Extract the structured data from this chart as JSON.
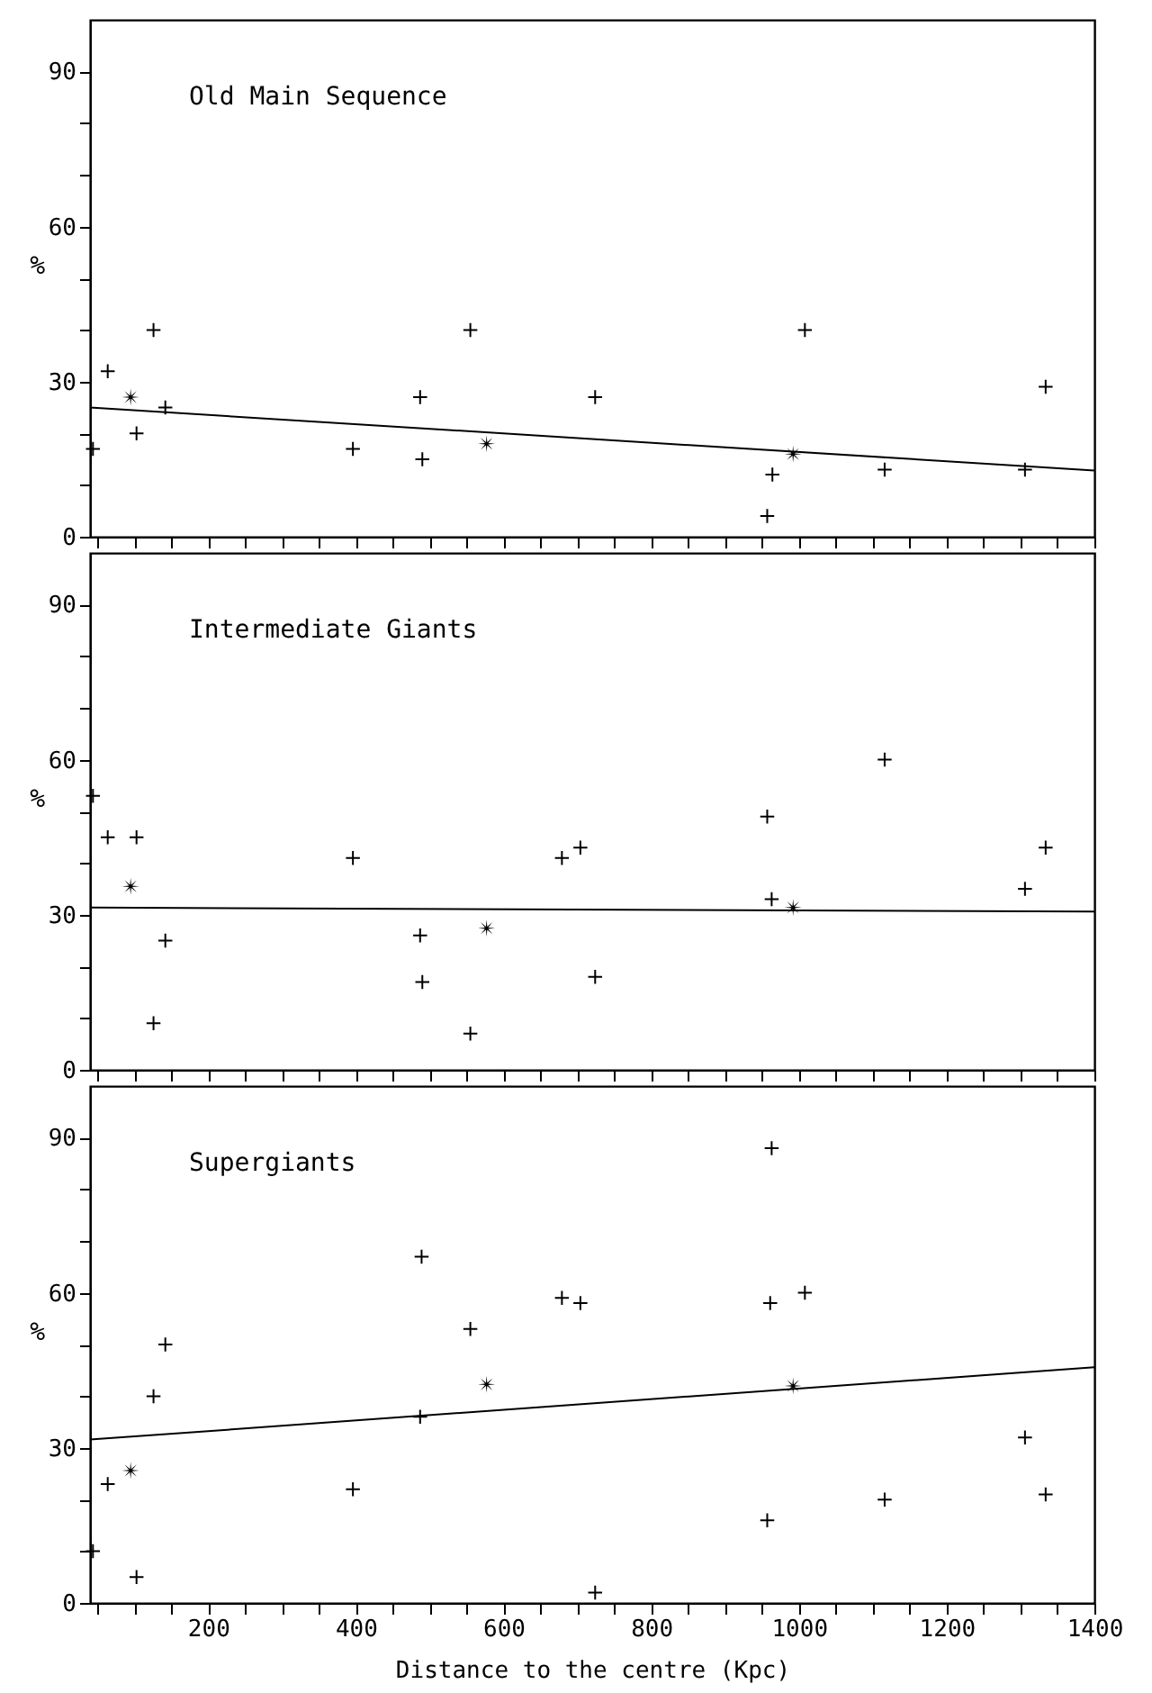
{
  "chart_data": [
    {
      "type": "scatter",
      "title": "Old Main Sequence",
      "ylabel": "%",
      "xlim": [
        40,
        1400
      ],
      "ylim": [
        0,
        100
      ],
      "tick_labels": "y",
      "grid": false,
      "xticks": [
        {
          "value": 50,
          "label": null
        },
        {
          "value": 100,
          "label": null
        },
        {
          "value": 150,
          "label": null
        },
        200,
        {
          "value": 250,
          "label": null
        },
        {
          "value": 300,
          "label": null
        },
        {
          "value": 350,
          "label": null
        },
        400,
        {
          "value": 450,
          "label": null
        },
        {
          "value": 500,
          "label": null
        },
        {
          "value": 550,
          "label": null
        },
        600,
        {
          "value": 650,
          "label": null
        },
        {
          "value": 700,
          "label": null
        },
        {
          "value": 750,
          "label": null
        },
        800,
        {
          "value": 850,
          "label": null
        },
        {
          "value": 900,
          "label": null
        },
        {
          "value": 950,
          "label": null
        },
        1000,
        {
          "value": 1050,
          "label": null
        },
        {
          "value": 1100,
          "label": null
        },
        {
          "value": 1150,
          "label": null
        },
        1200,
        {
          "value": 1250,
          "label": null
        },
        {
          "value": 1300,
          "label": null
        },
        {
          "value": 1350,
          "label": null
        },
        1400
      ],
      "yticks": [
        0,
        {
          "value": 10,
          "label": null
        },
        {
          "value": 20,
          "label": null
        },
        30,
        {
          "value": 40,
          "label": null
        },
        {
          "value": 50,
          "label": null
        },
        60,
        {
          "value": 70,
          "label": null
        },
        {
          "value": 80,
          "label": null
        },
        90
      ],
      "series": [
        {
          "type": "scatter",
          "marker": "cross",
          "color": "#000000",
          "x": [
            44,
            64,
            103,
            126,
            142,
            396,
            487,
            490,
            555,
            724,
            957,
            964,
            1008,
            1116,
            1306,
            1334
          ],
          "values": [
            17,
            32,
            20,
            40,
            25,
            17,
            27,
            15,
            40,
            27,
            4,
            12,
            40,
            13,
            13,
            29
          ]
        },
        {
          "type": "scatter",
          "marker": "star",
          "color": "#000000",
          "x": [
            95,
            577,
            992
          ],
          "values": [
            27,
            18,
            16
          ]
        },
        {
          "type": "line",
          "marker": "none",
          "line_style": "solid",
          "color": "#000000",
          "x": [
            40,
            1400
          ],
          "values": [
            25.0,
            12.8
          ]
        }
      ]
    },
    {
      "type": "scatter",
      "title": "Intermediate Giants",
      "ylabel": "%",
      "xlim": [
        40,
        1400
      ],
      "ylim": [
        0,
        100
      ],
      "tick_labels": "y",
      "grid": false,
      "xticks": [
        {
          "value": 50,
          "label": null
        },
        {
          "value": 100,
          "label": null
        },
        {
          "value": 150,
          "label": null
        },
        200,
        {
          "value": 250,
          "label": null
        },
        {
          "value": 300,
          "label": null
        },
        {
          "value": 350,
          "label": null
        },
        400,
        {
          "value": 450,
          "label": null
        },
        {
          "value": 500,
          "label": null
        },
        {
          "value": 550,
          "label": null
        },
        600,
        {
          "value": 650,
          "label": null
        },
        {
          "value": 700,
          "label": null
        },
        {
          "value": 750,
          "label": null
        },
        800,
        {
          "value": 850,
          "label": null
        },
        {
          "value": 900,
          "label": null
        },
        {
          "value": 950,
          "label": null
        },
        1000,
        {
          "value": 1050,
          "label": null
        },
        {
          "value": 1100,
          "label": null
        },
        {
          "value": 1150,
          "label": null
        },
        1200,
        {
          "value": 1250,
          "label": null
        },
        {
          "value": 1300,
          "label": null
        },
        {
          "value": 1350,
          "label": null
        },
        1400
      ],
      "yticks": [
        0,
        {
          "value": 10,
          "label": null
        },
        {
          "value": 20,
          "label": null
        },
        30,
        {
          "value": 40,
          "label": null
        },
        {
          "value": 50,
          "label": null
        },
        60,
        {
          "value": 70,
          "label": null
        },
        {
          "value": 80,
          "label": null
        },
        90
      ],
      "series": [
        {
          "type": "scatter",
          "marker": "cross",
          "color": "#000000",
          "x": [
            44,
            64,
            103,
            126,
            142,
            396,
            487,
            490,
            555,
            679,
            704,
            724,
            957,
            963,
            1116,
            1306,
            1334
          ],
          "values": [
            53,
            45,
            45,
            9,
            25,
            41,
            26,
            17,
            7,
            41,
            43,
            18,
            49,
            33,
            60,
            35,
            43
          ]
        },
        {
          "type": "scatter",
          "marker": "star",
          "color": "#000000",
          "x": [
            95,
            577,
            992
          ],
          "values": [
            35.5,
            27.4,
            31.4
          ]
        },
        {
          "type": "line",
          "marker": "none",
          "line_style": "solid",
          "color": "#000000",
          "x": [
            40,
            1400
          ],
          "values": [
            31.4,
            30.6
          ]
        }
      ]
    },
    {
      "type": "scatter",
      "title": "Supergiants",
      "ylabel": "%",
      "xlabel": "Distance to the centre (Kpc)",
      "xlim": [
        40,
        1400
      ],
      "ylim": [
        0,
        100
      ],
      "grid": false,
      "xticks": [
        {
          "value": 50,
          "label": null
        },
        {
          "value": 100,
          "label": null
        },
        {
          "value": 150,
          "label": null
        },
        200,
        {
          "value": 250,
          "label": null
        },
        {
          "value": 300,
          "label": null
        },
        {
          "value": 350,
          "label": null
        },
        400,
        {
          "value": 450,
          "label": null
        },
        {
          "value": 500,
          "label": null
        },
        {
          "value": 550,
          "label": null
        },
        600,
        {
          "value": 650,
          "label": null
        },
        {
          "value": 700,
          "label": null
        },
        {
          "value": 750,
          "label": null
        },
        800,
        {
          "value": 850,
          "label": null
        },
        {
          "value": 900,
          "label": null
        },
        {
          "value": 950,
          "label": null
        },
        1000,
        {
          "value": 1050,
          "label": null
        },
        {
          "value": 1100,
          "label": null
        },
        {
          "value": 1150,
          "label": null
        },
        1200,
        {
          "value": 1250,
          "label": null
        },
        {
          "value": 1300,
          "label": null
        },
        {
          "value": 1350,
          "label": null
        },
        1400
      ],
      "yticks": [
        0,
        {
          "value": 10,
          "label": null
        },
        {
          "value": 20,
          "label": null
        },
        30,
        {
          "value": 40,
          "label": null
        },
        {
          "value": 50,
          "label": null
        },
        60,
        {
          "value": 70,
          "label": null
        },
        {
          "value": 80,
          "label": null
        },
        90
      ],
      "series": [
        {
          "type": "scatter",
          "marker": "cross",
          "color": "#000000",
          "x": [
            44,
            64,
            103,
            126,
            142,
            396,
            489,
            487,
            555,
            679,
            704,
            724,
            957,
            963,
            961,
            1008,
            1116,
            1306,
            1334
          ],
          "values": [
            10,
            23,
            5,
            40,
            50,
            22,
            67,
            36,
            53,
            59,
            58,
            2,
            16,
            88,
            58,
            60,
            20,
            32,
            21
          ]
        },
        {
          "type": "scatter",
          "marker": "star",
          "color": "#000000",
          "x": [
            95,
            577,
            992
          ],
          "values": [
            25.6,
            42.3,
            42
          ]
        },
        {
          "type": "line",
          "marker": "none",
          "line_style": "solid",
          "color": "#000000",
          "x": [
            40,
            1400
          ],
          "values": [
            31.6,
            45.6
          ]
        }
      ]
    }
  ]
}
